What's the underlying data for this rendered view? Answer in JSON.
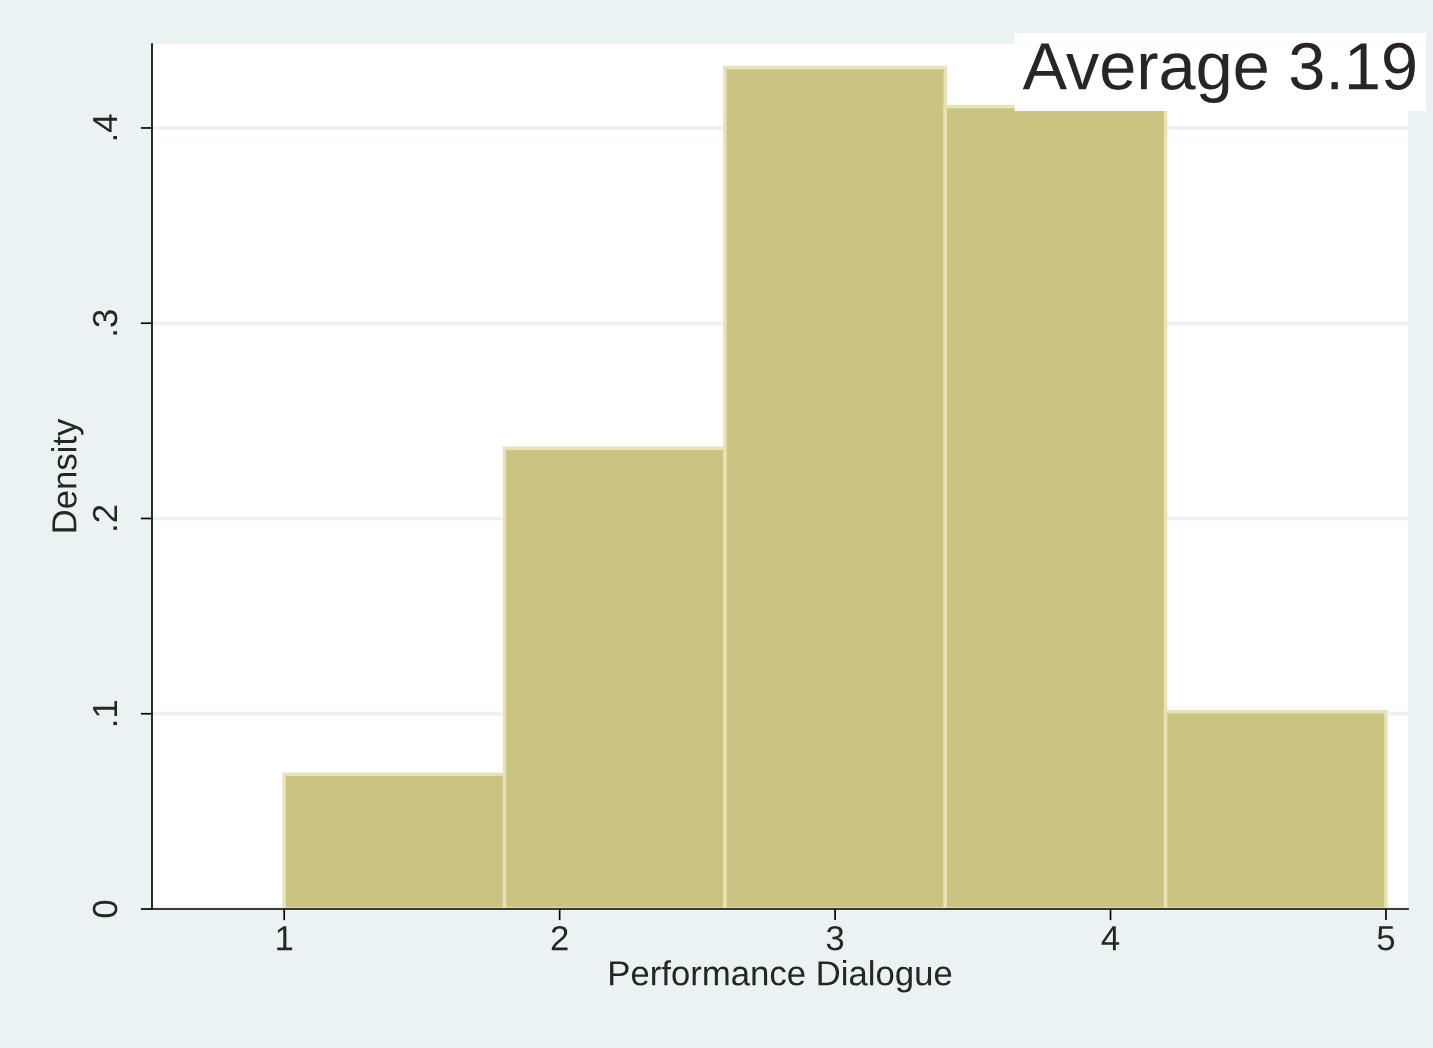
{
  "chart_data": {
    "type": "histogram",
    "xlabel": "Performance Dialogue",
    "ylabel": "Density",
    "bins": [
      1,
      1.8,
      2.6,
      3.4,
      4.2,
      5
    ],
    "values": [
      0.069,
      0.236,
      0.431,
      0.411,
      0.101
    ],
    "color": "#cbc382",
    "xlim": [
      0.52,
      5.08
    ],
    "xticks": [
      1,
      2,
      3,
      4,
      5
    ],
    "ylim": [
      0,
      0.443
    ],
    "yticks": [
      0,
      {
        "value": 0.1,
        "label": ".1"
      },
      {
        "value": 0.2,
        "label": ".2"
      },
      {
        "value": 0.3,
        "label": ".3"
      },
      {
        "value": 0.4,
        "label": ".4"
      }
    ],
    "grid": "y",
    "annotations": [
      "Average 3.19"
    ]
  }
}
